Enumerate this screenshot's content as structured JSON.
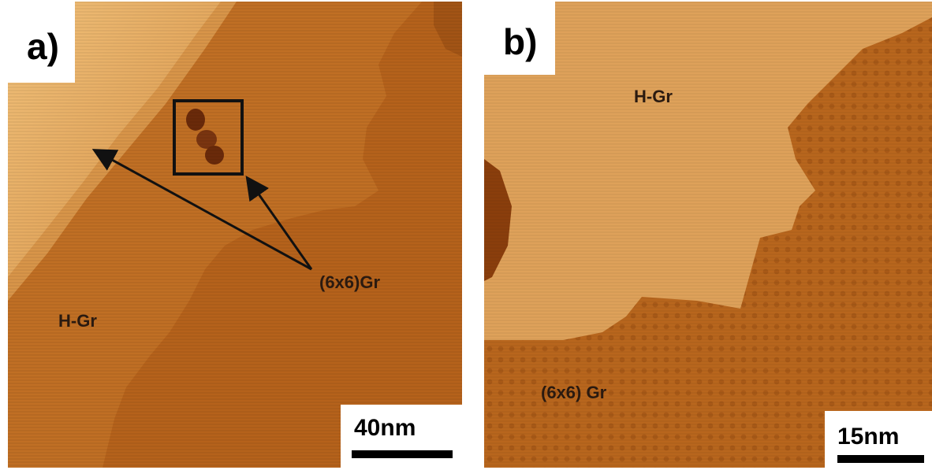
{
  "panel_a": {
    "label": "a)",
    "regions": {
      "h_gr": "H-Gr",
      "gr6x6": "(6x6)Gr"
    },
    "scale_bar": {
      "text": "40nm"
    }
  },
  "panel_b": {
    "label": "b)",
    "regions": {
      "h_gr": "H-Gr",
      "gr6x6": "(6x6) Gr"
    },
    "scale_bar": {
      "text": "15nm"
    }
  },
  "colors": {
    "terrace_light": "#e3a45a",
    "terrace_mid": "#c97a2c",
    "terrace_dark": "#a65616",
    "defect": "#6a2a0a"
  }
}
